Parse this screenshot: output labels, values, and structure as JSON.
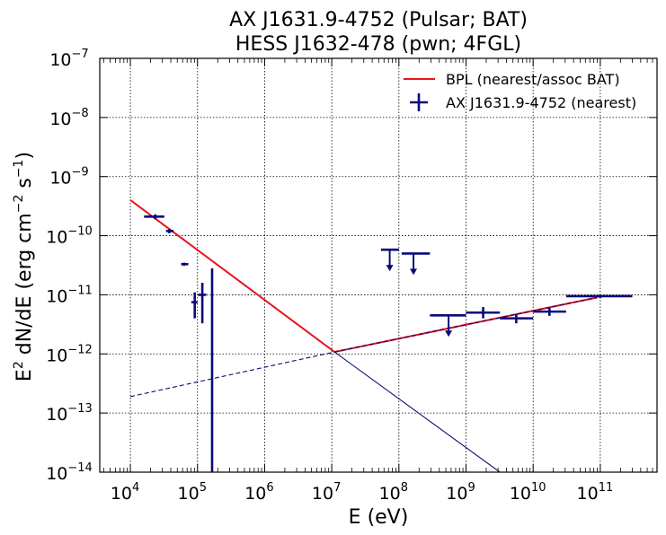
{
  "chart_data": {
    "type": "scatter",
    "title_lines": [
      "AX J1631.9-4752 (Pulsar; BAT)",
      "HESS J1632-478 (pwn; 4FGL)"
    ],
    "xlabel": "E (eV)",
    "ylabel_parts": {
      "a": "E",
      "b": "2",
      "c": " dN/dE (erg cm",
      "d": "−2",
      "e": " s",
      "f": "−1",
      "g": ")"
    },
    "x_scale": "log",
    "y_scale": "log",
    "xlim": [
      3500,
      700000000000.0
    ],
    "ylim": [
      1e-14,
      1e-07
    ],
    "grid": true,
    "legend_position": "top-right",
    "x_ticks": [
      {
        "value": 10000.0,
        "base": "10",
        "exp": "4"
      },
      {
        "value": 100000.0,
        "base": "10",
        "exp": "5"
      },
      {
        "value": 1000000.0,
        "base": "10",
        "exp": "6"
      },
      {
        "value": 10000000.0,
        "base": "10",
        "exp": "7"
      },
      {
        "value": 100000000.0,
        "base": "10",
        "exp": "8"
      },
      {
        "value": 1000000000.0,
        "base": "10",
        "exp": "9"
      },
      {
        "value": 10000000000.0,
        "base": "10",
        "exp": "10"
      },
      {
        "value": 100000000000.0,
        "base": "10",
        "exp": "11"
      }
    ],
    "y_ticks": [
      {
        "value": 1e-14,
        "base": "10",
        "exp": "−14"
      },
      {
        "value": 1e-13,
        "base": "10",
        "exp": "−13"
      },
      {
        "value": 1e-12,
        "base": "10",
        "exp": "−12"
      },
      {
        "value": 1e-11,
        "base": "10",
        "exp": "−11"
      },
      {
        "value": 1e-10,
        "base": "10",
        "exp": "−10"
      },
      {
        "value": 1e-09,
        "base": "10",
        "exp": "−9"
      },
      {
        "value": 1e-08,
        "base": "10",
        "exp": "−8"
      },
      {
        "value": 1e-07,
        "base": "10",
        "exp": "−7"
      }
    ],
    "legend": [
      {
        "label": "BPL (nearest/assoc BAT)",
        "kind": "line",
        "color": "#e8141c"
      },
      {
        "label": "AX J1631.9-4752 (nearest)",
        "kind": "errorbar",
        "color": "#0a0a7a"
      }
    ],
    "series": [
      {
        "kind": "model-line",
        "color": "#e8141c",
        "style": "solid",
        "points": [
          [
            10000.0,
            4e-10
          ],
          [
            11000000.0,
            1.08e-12
          ],
          [
            90000000000.0,
            9e-12
          ]
        ]
      },
      {
        "kind": "model-line",
        "color": "#0a0a7a",
        "style": "solid-thin",
        "points": [
          [
            11000000.0,
            1.08e-12
          ],
          [
            3200000000.0,
            1e-14
          ]
        ]
      },
      {
        "kind": "model-line",
        "color": "#0a0a7a",
        "style": "dashed",
        "points": [
          [
            10000.0,
            1.9e-13
          ],
          [
            11000000.0,
            1.08e-12
          ],
          [
            90000000000.0,
            9e-12
          ]
        ]
      },
      {
        "kind": "data-points",
        "name": "AX J1631.9-4752 (nearest)",
        "color": "#0a0a7a",
        "points": [
          {
            "x": 23500.0,
            "xlo": 16000.0,
            "xhi": 32000.0,
            "y": 2.1e-10,
            "ylo": 1.9e-10,
            "yhi": 2.3e-10
          },
          {
            "x": 38000.0,
            "xlo": 34000.0,
            "xhi": 44000.0,
            "y": 1.2e-10,
            "ylo": 1.1e-10,
            "yhi": 1.3e-10
          },
          {
            "x": 63000.0,
            "xlo": 57000.0,
            "xhi": 73000.0,
            "y": 3.3e-11,
            "ylo": 3.1e-11,
            "yhi": 3.5e-11
          },
          {
            "x": 91000.0,
            "xlo": 81000.0,
            "xhi": 100000.0,
            "y": 7.5e-12,
            "ylo": 4e-12,
            "yhi": 1.1e-11
          },
          {
            "x": 118000.0,
            "xlo": 102000.0,
            "xhi": 135000.0,
            "y": 1e-11,
            "ylo": 3.3e-12,
            "yhi": 1.6e-11
          },
          {
            "x": 165000.0,
            "xlo": 165000.0,
            "xhi": 165000.0,
            "y": 1e-12,
            "ylo": 1e-14,
            "yhi": 2.8e-11
          },
          {
            "x": 550000000.0,
            "xlo": 290000000.0,
            "xhi": 1000000000.0,
            "y": 4.5e-12,
            "ylo": 2.2e-12,
            "yhi": 4.5e-12,
            "upper_limit": true
          },
          {
            "x": 1800000000.0,
            "xlo": 1000000000.0,
            "xhi": 3200000000.0,
            "y": 5e-12,
            "ylo": 4e-12,
            "yhi": 6.2e-12
          },
          {
            "x": 5600000000.0,
            "xlo": 3200000000.0,
            "xhi": 10000000000.0,
            "y": 4e-12,
            "ylo": 3.3e-12,
            "yhi": 4.7e-12
          },
          {
            "x": 17500000000.0,
            "xlo": 10000000000.0,
            "xhi": 31000000000.0,
            "y": 5.2e-12,
            "ylo": 4.4e-12,
            "yhi": 6e-12
          },
          {
            "x": 100000000000.0,
            "xlo": 31000000000.0,
            "xhi": 300000000000.0,
            "y": 9.5e-12,
            "ylo": 8.8e-12,
            "yhi": 1.02e-11
          }
        ]
      },
      {
        "kind": "upper-limits",
        "name": "AX J1631.9-4752 (nearest)",
        "color": "#0a0a7a",
        "points": [
          {
            "x": 73000000.0,
            "xlo": 54000000.0,
            "xhi": 100000000.0,
            "y": 5.8e-11
          },
          {
            "x": 165000000.0,
            "xlo": 110000000.0,
            "xhi": 290000000.0,
            "y": 5e-11
          }
        ]
      }
    ]
  }
}
